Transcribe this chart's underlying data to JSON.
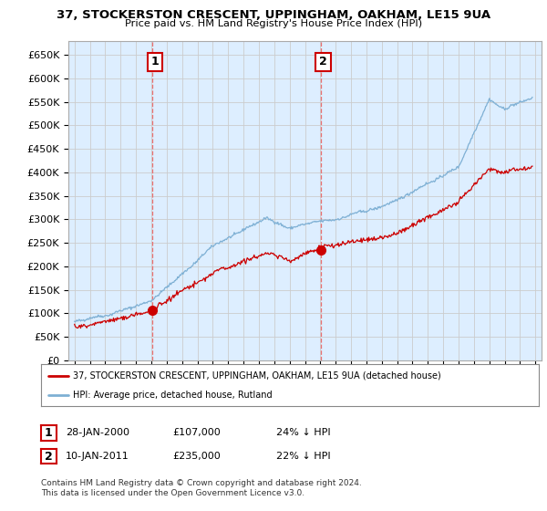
{
  "title": "37, STOCKERSTON CRESCENT, UPPINGHAM, OAKHAM, LE15 9UA",
  "subtitle": "Price paid vs. HM Land Registry's House Price Index (HPI)",
  "legend_line1": "37, STOCKERSTON CRESCENT, UPPINGHAM, OAKHAM, LE15 9UA (detached house)",
  "legend_line2": "HPI: Average price, detached house, Rutland",
  "annotation1_label": "1",
  "annotation1_date": "28-JAN-2000",
  "annotation1_price": "£107,000",
  "annotation1_hpi": "24% ↓ HPI",
  "annotation2_label": "2",
  "annotation2_date": "10-JAN-2011",
  "annotation2_price": "£235,000",
  "annotation2_hpi": "22% ↓ HPI",
  "footnote": "Contains HM Land Registry data © Crown copyright and database right 2024.\nThis data is licensed under the Open Government Licence v3.0.",
  "red_color": "#cc0000",
  "blue_color": "#7eb0d4",
  "vline_color": "#e87070",
  "grid_color": "#cccccc",
  "chart_bg": "#ddeeff",
  "background_color": "#ffffff",
  "ylim": [
    0,
    680000
  ],
  "yticks": [
    0,
    50000,
    100000,
    150000,
    200000,
    250000,
    300000,
    350000,
    400000,
    450000,
    500000,
    550000,
    600000,
    650000
  ],
  "year_start": 1995,
  "year_end": 2025,
  "purchase1_year": 2000.07,
  "purchase1_value": 107000,
  "purchase2_year": 2011.03,
  "purchase2_value": 235000
}
